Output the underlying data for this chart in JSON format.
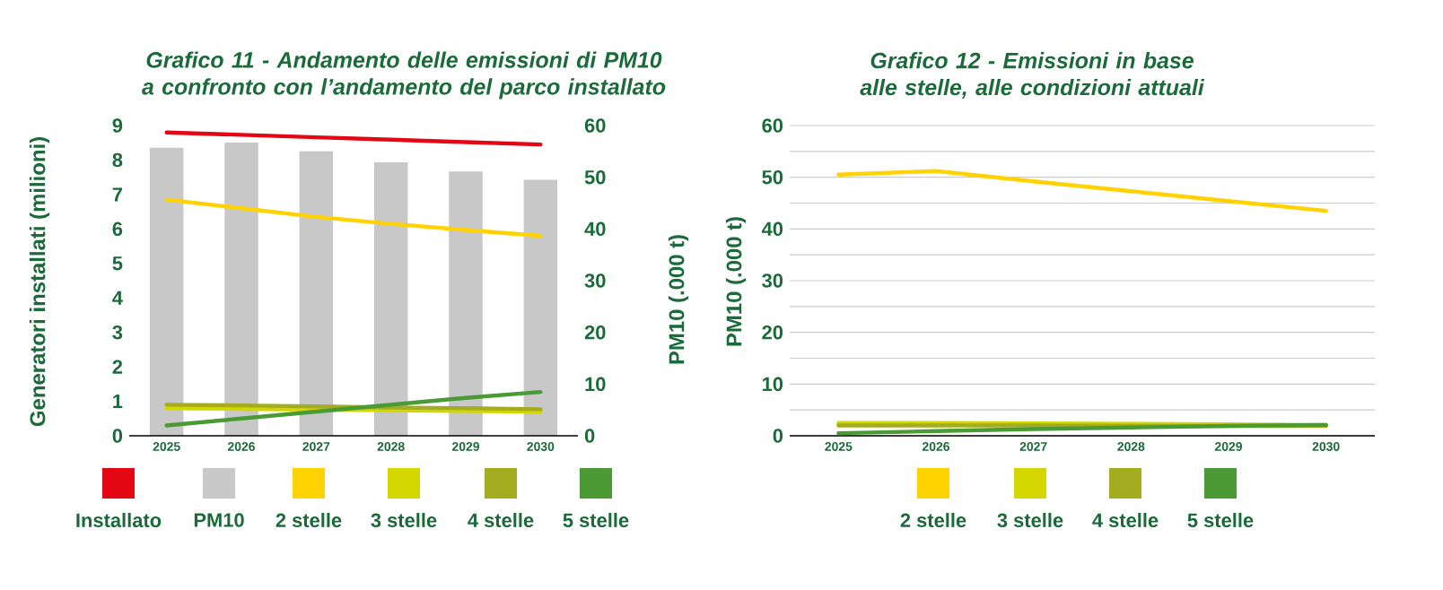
{
  "chart_data": [
    {
      "type": "line",
      "title": "Grafico 11 - Andamento delle emissioni di PM10 a confronto con l’andamento del parco installato",
      "ylabel": "Generatori installati (milioni)",
      "y2label": "PM10 (.000 t)",
      "categories": [
        "2025",
        "2026",
        "2027",
        "2028",
        "2029",
        "2030"
      ],
      "ylim": [
        0,
        9
      ],
      "yticks": [
        0,
        1,
        2,
        3,
        4,
        5,
        6,
        7,
        8,
        9
      ],
      "y2lim": [
        0,
        60
      ],
      "y2ticks": [
        0,
        10,
        20,
        30,
        40,
        50,
        60
      ],
      "legend": "bottom",
      "series": [
        {
          "name": "Installato",
          "color": "#e30613",
          "values": [
            8.8,
            8.73,
            8.66,
            8.59,
            8.52,
            8.45
          ]
        },
        {
          "name": "PM10",
          "type": "bar",
          "axis": "y2",
          "color": "#c8c8c8",
          "values": [
            55.7,
            56.7,
            55,
            52.9,
            51.1,
            49.5
          ]
        },
        {
          "name": "2 stelle",
          "color": "#ffd200",
          "values": [
            6.85,
            6.6,
            6.35,
            6.15,
            5.97,
            5.8
          ]
        },
        {
          "name": "3 stelle",
          "color": "#d4d600",
          "values": [
            0.8,
            0.78,
            0.76,
            0.74,
            0.72,
            0.7
          ]
        },
        {
          "name": "4 stelle",
          "color": "#a3ad1f",
          "values": [
            0.9,
            0.88,
            0.85,
            0.82,
            0.8,
            0.77
          ]
        },
        {
          "name": "5 stelle",
          "color": "#4a9a35",
          "values": [
            0.3,
            0.5,
            0.7,
            0.9,
            1.1,
            1.27
          ]
        }
      ]
    },
    {
      "type": "line",
      "title": "Grafico 12 - Emissioni in base alle stelle, alle condizioni attuali",
      "ylabel": "PM10 (.000 t)",
      "categories": [
        "2025",
        "2026",
        "2027",
        "2028",
        "2029",
        "2030"
      ],
      "ylim": [
        0,
        60
      ],
      "yticks": [
        0,
        {
          "value": 5,
          "label": null
        },
        10,
        {
          "value": 15,
          "label": null
        },
        20,
        {
          "value": 25,
          "label": null
        },
        30,
        {
          "value": 35,
          "label": null
        },
        40,
        {
          "value": 45,
          "label": null
        },
        50,
        {
          "value": 55,
          "label": null
        },
        60
      ],
      "grid": "y",
      "legend": "bottom",
      "series": [
        {
          "name": "2 stelle",
          "color": "#ffd200",
          "values": [
            50.5,
            51.2,
            49.2,
            47.3,
            45.4,
            43.5
          ]
        },
        {
          "name": "3 stelle",
          "color": "#d4d600",
          "values": [
            2.5,
            2.5,
            2.4,
            2.3,
            2.2,
            2.1
          ]
        },
        {
          "name": "4 stelle",
          "color": "#a3ad1f",
          "values": [
            2.0,
            2.0,
            2.0,
            1.9,
            1.9,
            1.9
          ]
        },
        {
          "name": "5 stelle",
          "color": "#4a9a35",
          "values": [
            0.5,
            0.9,
            1.3,
            1.6,
            1.9,
            2.1
          ]
        }
      ]
    }
  ]
}
